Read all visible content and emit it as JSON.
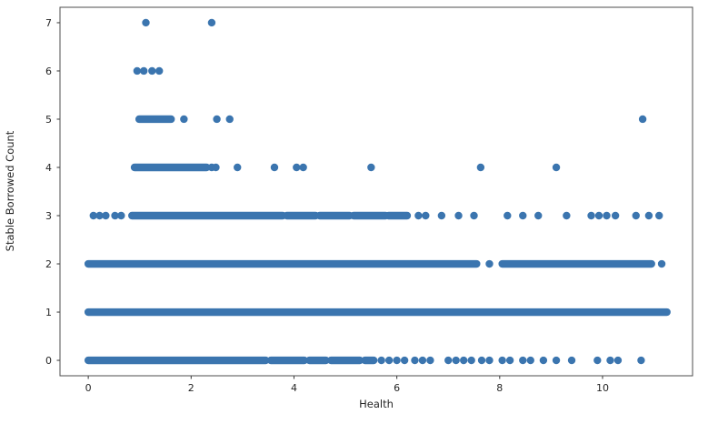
{
  "figure": {
    "background": "#ffffff",
    "spine_color": "#4d4d4d",
    "tick_color": "#333333"
  },
  "chart_data": {
    "type": "scatter",
    "title": "",
    "xlabel": "Health",
    "ylabel": "Stable Borrowed Count",
    "xlim": [
      -0.55,
      11.75
    ],
    "ylim": [
      -0.32,
      7.32
    ],
    "xticks": [
      0,
      2,
      4,
      6,
      8,
      10
    ],
    "yticks": [
      0,
      1,
      2,
      3,
      4,
      5,
      6,
      7
    ],
    "grid": false,
    "legend": null,
    "marker": {
      "color": "#3b75af",
      "radius": 4.2
    },
    "rows": [
      {
        "y": 7,
        "dense_x_ranges": [],
        "x_points": [
          1.12,
          2.4
        ]
      },
      {
        "y": 6,
        "dense_x_ranges": [],
        "x_points": [
          0.95,
          1.08,
          1.24,
          1.38
        ]
      },
      {
        "y": 5,
        "dense_x_ranges": [
          [
            0.99,
            1.61
          ]
        ],
        "x_points": [
          1.86,
          2.5,
          2.75,
          10.78
        ]
      },
      {
        "y": 4,
        "dense_x_ranges": [
          [
            0.9,
            2.3
          ]
        ],
        "x_points": [
          2.4,
          2.48,
          2.9,
          3.62,
          4.05,
          4.18,
          5.5,
          7.63,
          9.1
        ]
      },
      {
        "y": 3,
        "dense_x_ranges": [
          [
            0.85,
            3.78
          ],
          [
            3.86,
            4.42
          ],
          [
            4.5,
            5.08
          ],
          [
            5.16,
            5.78
          ],
          [
            5.84,
            6.2
          ]
        ],
        "x_points": [
          0.1,
          0.22,
          0.34,
          0.52,
          0.64,
          6.42,
          6.56,
          6.87,
          7.2,
          7.5,
          8.15,
          8.45,
          8.75,
          9.3,
          9.78,
          9.93,
          10.08,
          10.25,
          10.65,
          10.9,
          11.1
        ]
      },
      {
        "y": 2,
        "dense_x_ranges": [
          [
            0.0,
            7.55
          ],
          [
            8.05,
            10.95
          ]
        ],
        "x_points": [
          7.8,
          11.15
        ]
      },
      {
        "y": 1,
        "dense_x_ranges": [
          [
            0.0,
            11.25
          ]
        ],
        "x_points": []
      },
      {
        "y": 0,
        "dense_x_ranges": [
          [
            0.0,
            3.45
          ],
          [
            3.55,
            4.2
          ],
          [
            4.3,
            4.62
          ],
          [
            4.72,
            5.28
          ],
          [
            5.38,
            5.55
          ]
        ],
        "x_points": [
          5.7,
          5.85,
          6.0,
          6.15,
          6.35,
          6.5,
          6.65,
          7.0,
          7.15,
          7.3,
          7.45,
          7.65,
          7.8,
          8.05,
          8.2,
          8.45,
          8.6,
          8.85,
          9.1,
          9.4,
          9.9,
          10.15,
          10.3,
          10.75
        ]
      }
    ]
  }
}
